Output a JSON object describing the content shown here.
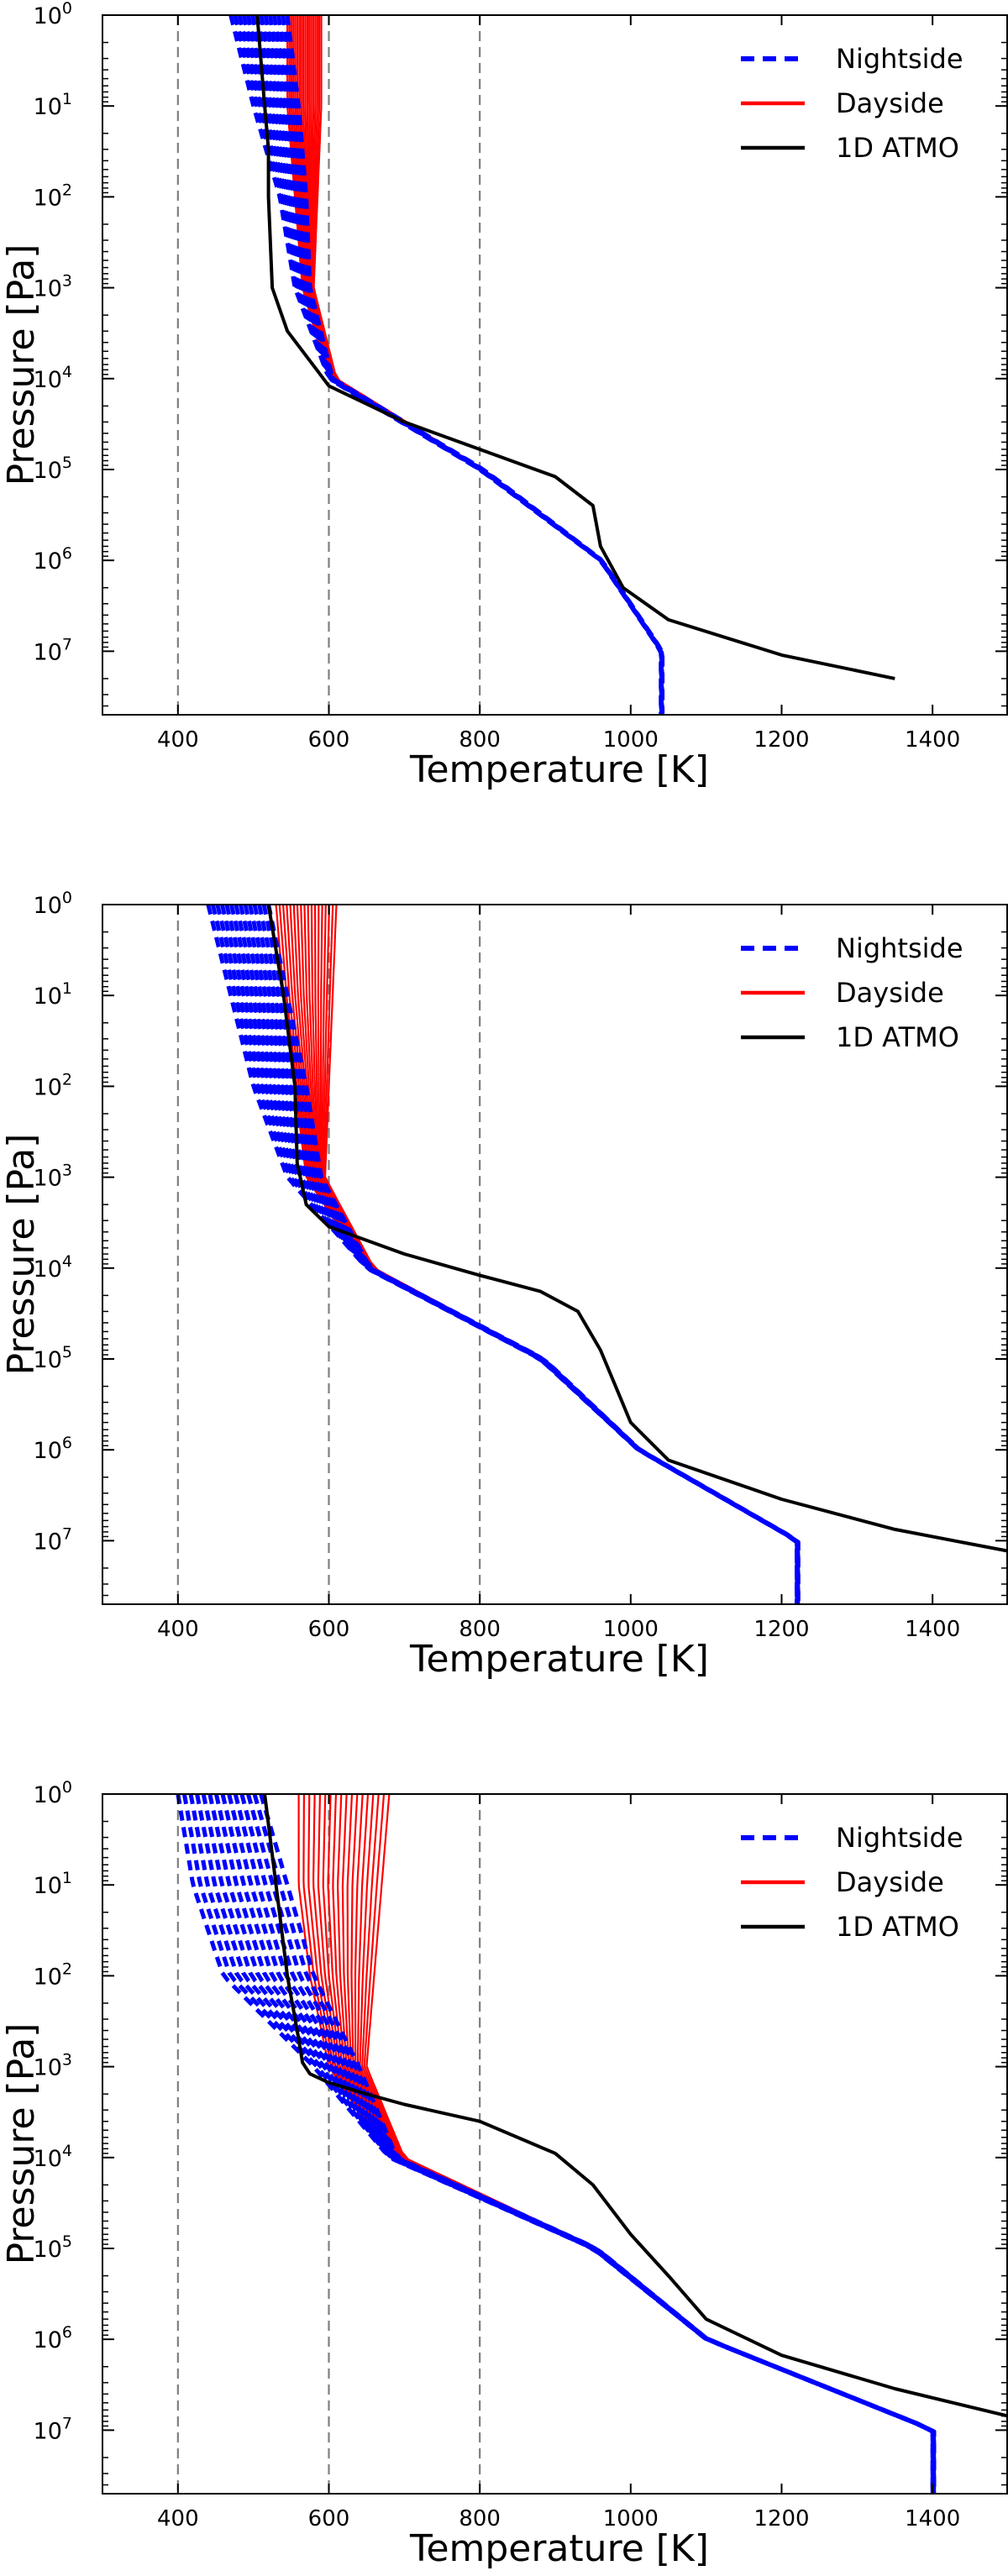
{
  "colors": {
    "nightside": "#0000ff",
    "dayside": "#ff0000",
    "atmo": "#000000",
    "refline": "#7f7f7f"
  },
  "chart_data": [
    {
      "type": "line",
      "panel": "top",
      "xlabel": "Temperature [K]",
      "ylabel": "Pressure [Pa]",
      "xlim": [
        300,
        1500
      ],
      "ylim": [
        1,
        50000000.0
      ],
      "yscale": "log",
      "yinverted": true,
      "xticks": [
        400,
        600,
        800,
        1000,
        1200,
        1400
      ],
      "yticks": [
        {
          "value": 1,
          "base": "10",
          "exp": "0"
        },
        {
          "value": 10,
          "base": "10",
          "exp": "1"
        },
        {
          "value": 100,
          "base": "10",
          "exp": "2"
        },
        {
          "value": 1000,
          "base": "10",
          "exp": "3"
        },
        {
          "value": 10000,
          "base": "10",
          "exp": "4"
        },
        {
          "value": 100000,
          "base": "10",
          "exp": "5"
        },
        {
          "value": 1000000,
          "base": "10",
          "exp": "6"
        },
        {
          "value": 10000000,
          "base": "10",
          "exp": "7"
        }
      ],
      "vlines": [
        400,
        600,
        800
      ],
      "legend": {
        "position": "top-right",
        "entries": [
          "Nightside",
          "Dayside",
          "1D ATMO"
        ]
      },
      "profile_counts": {
        "nightside": 14,
        "dayside": 18
      },
      "series": [
        {
          "name": "Nightside",
          "style": "dashed",
          "envelope": {
            "p": [
              1,
              10,
              100,
              1000,
              10000,
              100000,
              1000000,
              10000000
            ],
            "t_min": [
              470,
              500,
              535,
              555,
              600,
              800,
              960,
              1040
            ],
            "t_max": [
              545,
              560,
              570,
              575,
              605,
              805,
              962,
              1042
            ]
          }
        },
        {
          "name": "Dayside",
          "style": "solid",
          "envelope": {
            "p": [
              1,
              10,
              100,
              1000,
              10000,
              100000,
              1000000,
              10000000
            ],
            "t_min": [
              545,
              545,
              555,
              565,
              600,
              800,
              960,
              1040
            ],
            "t_max": [
              590,
              590,
              585,
              580,
              610,
              805,
              962,
              1042
            ]
          }
        },
        {
          "name": "1D ATMO",
          "style": "solid",
          "t": [
            505,
            515,
            520,
            520,
            525,
            545,
            600,
            700,
            800,
            900,
            950,
            960,
            990,
            1050,
            1200,
            1350
          ],
          "p": [
            1,
            10,
            30,
            100,
            1000,
            3000,
            12000,
            30000,
            60000,
            120000,
            250000,
            700000,
            2000000,
            4500000,
            11000000,
            20000000
          ]
        }
      ]
    },
    {
      "type": "line",
      "panel": "middle",
      "xlabel": "Temperature [K]",
      "ylabel": "Pressure [Pa]",
      "xlim": [
        300,
        1500
      ],
      "ylim": [
        1,
        50000000.0
      ],
      "yscale": "log",
      "yinverted": true,
      "xticks": [
        400,
        600,
        800,
        1000,
        1200,
        1400
      ],
      "yticks": [
        {
          "value": 1,
          "base": "10",
          "exp": "0"
        },
        {
          "value": 10,
          "base": "10",
          "exp": "1"
        },
        {
          "value": 100,
          "base": "10",
          "exp": "2"
        },
        {
          "value": 1000,
          "base": "10",
          "exp": "3"
        },
        {
          "value": 10000,
          "base": "10",
          "exp": "4"
        },
        {
          "value": 100000,
          "base": "10",
          "exp": "5"
        },
        {
          "value": 1000000,
          "base": "10",
          "exp": "6"
        },
        {
          "value": 10000000,
          "base": "10",
          "exp": "7"
        }
      ],
      "vlines": [
        400,
        600,
        800
      ],
      "legend": {
        "position": "top-right",
        "entries": [
          "Nightside",
          "Dayside",
          "1D ATMO"
        ]
      },
      "profile_counts": {
        "nightside": 14,
        "dayside": 18
      },
      "series": [
        {
          "name": "Nightside",
          "style": "dashed",
          "envelope": {
            "p": [
              1,
              10,
              100,
              1000,
              10000,
              100000,
              1000000,
              10000000
            ],
            "t_min": [
              440,
              470,
              500,
              545,
              650,
              880,
              1010,
              1220
            ],
            "t_max": [
              520,
              545,
              570,
              590,
              655,
              885,
              1012,
              1222
            ]
          }
        },
        {
          "name": "Dayside",
          "style": "solid",
          "envelope": {
            "p": [
              1,
              10,
              100,
              1000,
              10000,
              100000,
              1000000,
              10000000
            ],
            "t_min": [
              530,
              540,
              555,
              570,
              650,
              880,
              1010,
              1220
            ],
            "t_max": [
              610,
              605,
              600,
              595,
              660,
              885,
              1012,
              1222
            ]
          }
        },
        {
          "name": "1D ATMO",
          "style": "solid",
          "t": [
            520,
            540,
            555,
            558,
            570,
            600,
            700,
            800,
            880,
            930,
            960,
            980,
            1000,
            1050,
            1200,
            1350,
            1500
          ],
          "p": [
            1,
            10,
            100,
            700,
            2000,
            3500,
            7000,
            12000,
            18000,
            30000,
            80000,
            200000,
            500000,
            1300000,
            3500000,
            7500000,
            13000000
          ]
        }
      ]
    },
    {
      "type": "line",
      "panel": "bottom",
      "xlabel": "Temperature [K]",
      "ylabel": "Pressure [Pa]",
      "xlim": [
        300,
        1500
      ],
      "ylim": [
        1,
        50000000.0
      ],
      "yscale": "log",
      "yinverted": true,
      "xticks": [
        400,
        600,
        800,
        1000,
        1200,
        1400
      ],
      "yticks": [
        {
          "value": 1,
          "base": "10",
          "exp": "0"
        },
        {
          "value": 10,
          "base": "10",
          "exp": "1"
        },
        {
          "value": 100,
          "base": "10",
          "exp": "2"
        },
        {
          "value": 1000,
          "base": "10",
          "exp": "3"
        },
        {
          "value": 10000,
          "base": "10",
          "exp": "4"
        },
        {
          "value": 100000,
          "base": "10",
          "exp": "5"
        },
        {
          "value": 1000000,
          "base": "10",
          "exp": "6"
        },
        {
          "value": 10000000,
          "base": "10",
          "exp": "7"
        }
      ],
      "vlines": [
        400,
        600,
        800
      ],
      "legend": {
        "position": "top-right",
        "entries": [
          "Nightside",
          "Dayside",
          "1D ATMO"
        ]
      },
      "profile_counts": {
        "nightside": 14,
        "dayside": 18
      },
      "series": [
        {
          "name": "Nightside",
          "style": "dashed",
          "envelope": {
            "p": [
              1,
              10,
              100,
              1000,
              10000,
              100000,
              1000000,
              10000000
            ],
            "t_min": [
              400,
              420,
              460,
              580,
              680,
              950,
              1100,
              1400
            ],
            "t_max": [
              510,
              545,
              580,
              640,
              690,
              955,
              1102,
              1402
            ]
          }
        },
        {
          "name": "Dayside",
          "style": "solid",
          "envelope": {
            "p": [
              1,
              10,
              100,
              1000,
              10000,
              100000,
              1000000,
              10000000
            ],
            "t_min": [
              560,
              560,
              575,
              600,
              680,
              950,
              1100,
              1400
            ],
            "t_max": [
              680,
              670,
              660,
              650,
              700,
              955,
              1102,
              1402
            ]
          }
        },
        {
          "name": "1D ATMO",
          "style": "solid",
          "t": [
            515,
            530,
            545,
            560,
            565,
            575,
            600,
            650,
            700,
            800,
            900,
            950,
            1000,
            1050,
            1100,
            1200,
            1350,
            1500
          ],
          "p": [
            1,
            10,
            100,
            500,
            900,
            1200,
            1500,
            2000,
            2600,
            4000,
            9000,
            20000,
            70000,
            200000,
            600000,
            1500000,
            3500000,
            7000000
          ]
        }
      ]
    }
  ]
}
